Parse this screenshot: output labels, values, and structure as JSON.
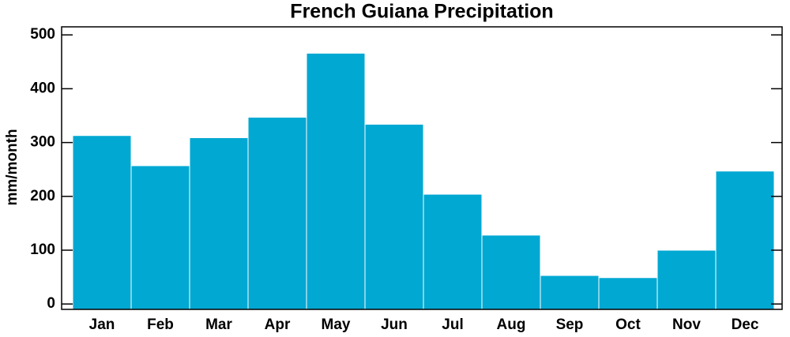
{
  "chart_data": {
    "type": "bar",
    "title": "French Guiana Precipitation",
    "y_label": "mm/month",
    "categories": [
      "Jan",
      "Feb",
      "Mar",
      "Apr",
      "May",
      "Jun",
      "Jul",
      "Aug",
      "Sep",
      "Oct",
      "Nov",
      "Dec"
    ],
    "values": [
      313,
      257,
      309,
      347,
      466,
      334,
      204,
      128,
      53,
      49,
      100,
      247
    ],
    "color": "#00a8d2",
    "ylim": [
      -10,
      515
    ],
    "yticks": [
      0,
      100,
      200,
      300,
      400,
      500
    ],
    "grid": false
  }
}
